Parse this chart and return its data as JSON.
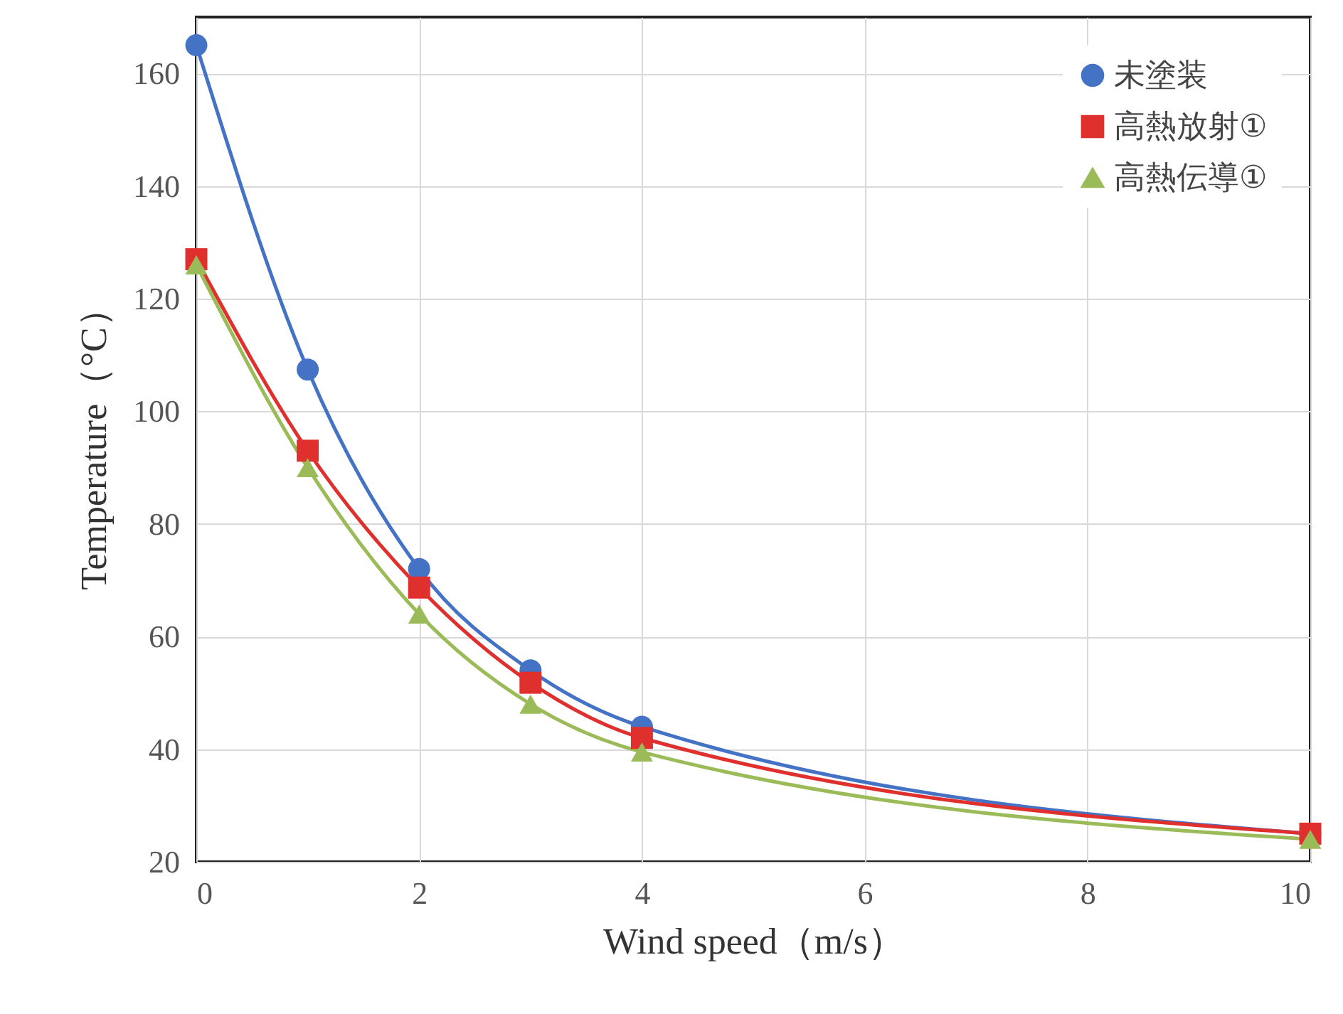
{
  "chart_data": {
    "type": "line",
    "xlabel": "Wind speed（m/s）",
    "ylabel": "Temperature（°C）",
    "x": [
      0,
      1,
      2,
      3,
      4,
      10
    ],
    "xlim": [
      0,
      10
    ],
    "xticks": [
      0,
      2,
      4,
      6,
      8,
      10
    ],
    "ylim": [
      20,
      170
    ],
    "yticks": [
      20,
      40,
      60,
      80,
      100,
      120,
      140,
      160
    ],
    "grid": true,
    "legend": "top right",
    "series": [
      {
        "name": "未塗装",
        "color": "#4472c4",
        "marker": "circle",
        "values": [
          165,
          107.4,
          72,
          54,
          44,
          25
        ]
      },
      {
        "name": "高熱放射①",
        "color": "#e0302e",
        "marker": "square",
        "values": [
          127,
          93,
          68.7,
          51.8,
          42,
          25
        ]
      },
      {
        "name": "高熱伝導①",
        "color": "#9bbb59",
        "marker": "triangle",
        "values": [
          126,
          90,
          64,
          48,
          39.5,
          24
        ]
      }
    ]
  }
}
